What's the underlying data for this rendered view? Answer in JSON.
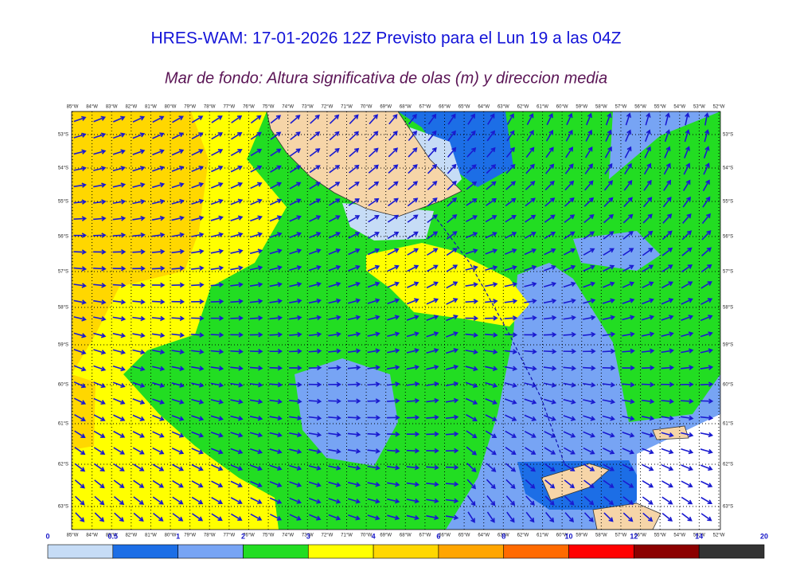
{
  "header": {
    "title": "HRES-WAM: 17-01-2026 12Z Previsto para el Lun 19 a las 04Z",
    "subtitle": "Mar de fondo: Altura significativa de olas (m) y direccion media"
  },
  "map": {
    "longitude_labels": [
      "85°W",
      "84°W",
      "83°W",
      "82°W",
      "81°W",
      "80°W",
      "79°W",
      "78°W",
      "77°W",
      "76°W",
      "75°W",
      "74°W",
      "73°W",
      "72°W",
      "71°W",
      "70°W",
      "69°W",
      "68°W",
      "67°W",
      "66°W",
      "65°W",
      "64°W",
      "63°W",
      "62°W",
      "61°W",
      "60°W",
      "59°W",
      "58°W",
      "57°W",
      "56°W",
      "55°W",
      "54°W",
      "53°W",
      "52°W"
    ],
    "latitude_labels": [
      "53°S",
      "54°S",
      "55°S",
      "56°S",
      "57°S",
      "58°S",
      "59°S",
      "60°S",
      "61°S",
      "62°S",
      "63°S"
    ]
  },
  "colorbar": {
    "levels": [
      0,
      0.5,
      1,
      2,
      3,
      4,
      6,
      8,
      10,
      12,
      14,
      20
    ],
    "colors": [
      "#c6dcf6",
      "#1c6ee6",
      "#77a4f4",
      "#22dd22",
      "#ffff00",
      "#ffd700",
      "#ffa500",
      "#ff6a00",
      "#ff0000",
      "#8b0000",
      "#333333"
    ]
  }
}
